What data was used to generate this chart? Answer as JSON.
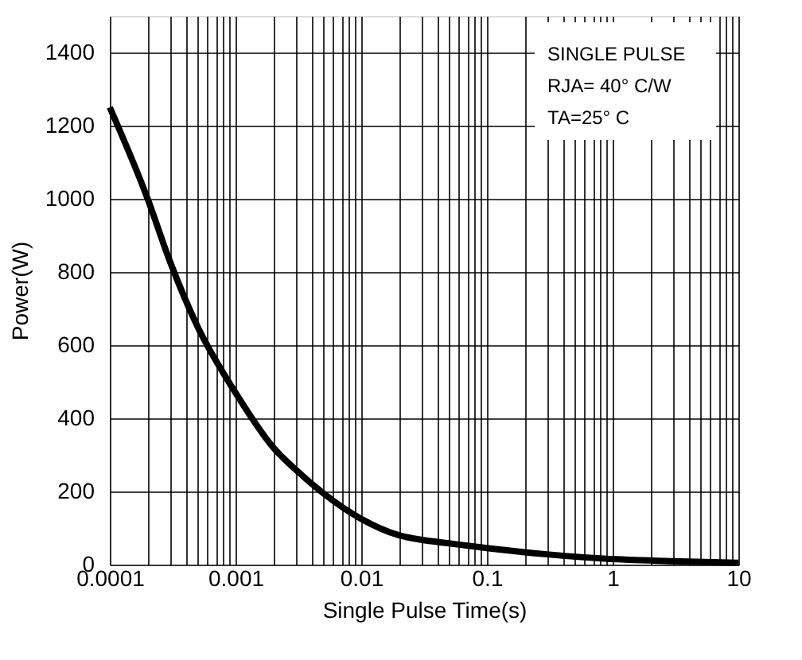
{
  "chart_data": {
    "type": "line",
    "xlabel": "Single Pulse Time(s)",
    "ylabel": "Power(W)",
    "x": [
      0.0001,
      0.0002,
      0.0003,
      0.0005,
      0.001,
      0.002,
      0.003,
      0.005,
      0.01,
      0.02,
      0.03,
      0.05,
      0.1,
      0.3,
      1,
      3,
      10
    ],
    "series": [
      {
        "color": "#000000",
        "values": [
          1250,
          1000,
          830,
          650,
          470,
          320,
          260,
          195,
          125,
          80,
          68,
          58,
          45,
          28,
          15,
          9,
          5
        ]
      }
    ],
    "log": "x",
    "xlim": [
      0.0001,
      10
    ],
    "ylim": [
      0,
      1500
    ],
    "xticks": [
      {
        "value": 0.0001,
        "label": "0.0001"
      },
      {
        "value": 0.0002,
        "label": null
      },
      {
        "value": 0.0003,
        "label": null
      },
      {
        "value": 0.0004,
        "label": null
      },
      {
        "value": 0.0005,
        "label": null
      },
      {
        "value": 0.0006,
        "label": null
      },
      {
        "value": 0.0007,
        "label": null
      },
      {
        "value": 0.0008,
        "label": null
      },
      {
        "value": 0.0009,
        "label": null
      },
      {
        "value": 0.001,
        "label": "0.001"
      },
      {
        "value": 0.002,
        "label": null
      },
      {
        "value": 0.003,
        "label": null
      },
      {
        "value": 0.004,
        "label": null
      },
      {
        "value": 0.005,
        "label": null
      },
      {
        "value": 0.006,
        "label": null
      },
      {
        "value": 0.007,
        "label": null
      },
      {
        "value": 0.008,
        "label": null
      },
      {
        "value": 0.009,
        "label": null
      },
      {
        "value": 0.01,
        "label": "0.01"
      },
      {
        "value": 0.02,
        "label": null
      },
      {
        "value": 0.03,
        "label": null
      },
      {
        "value": 0.04,
        "label": null
      },
      {
        "value": 0.05,
        "label": null
      },
      {
        "value": 0.06,
        "label": null
      },
      {
        "value": 0.07,
        "label": null
      },
      {
        "value": 0.08,
        "label": null
      },
      {
        "value": 0.09,
        "label": null
      },
      {
        "value": 0.1,
        "label": "0.1"
      },
      {
        "value": 0.2,
        "label": null
      },
      {
        "value": 0.3,
        "label": null
      },
      {
        "value": 0.4,
        "label": null
      },
      {
        "value": 0.5,
        "label": null
      },
      {
        "value": 0.6,
        "label": null
      },
      {
        "value": 0.7,
        "label": null
      },
      {
        "value": 0.8,
        "label": null
      },
      {
        "value": 0.9,
        "label": null
      },
      1,
      {
        "value": 2,
        "label": null
      },
      {
        "value": 3,
        "label": null
      },
      {
        "value": 4,
        "label": null
      },
      {
        "value": 5,
        "label": null
      },
      {
        "value": 6,
        "label": null
      },
      {
        "value": 7,
        "label": null
      },
      {
        "value": 8,
        "label": null
      },
      {
        "value": 9,
        "label": null
      },
      10
    ],
    "yticks": [
      0,
      200,
      400,
      600,
      800,
      1000,
      1200,
      1400
    ],
    "grid": true,
    "marker": "none",
    "line_style": "solid",
    "annotations": [
      "SINGLE PULSE",
      "RJA= 40° C/W",
      "TA=25° C"
    ]
  }
}
